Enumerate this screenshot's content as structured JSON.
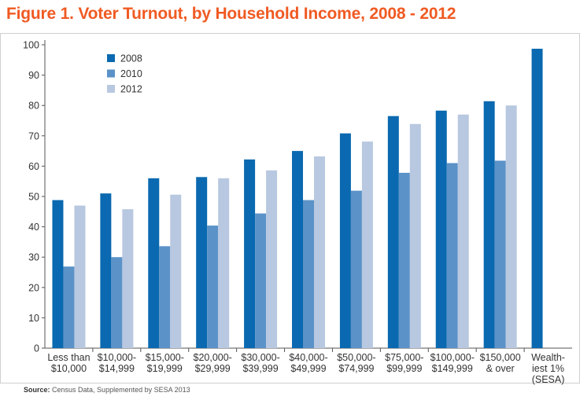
{
  "chart_data": {
    "type": "bar",
    "title": "Figure 1. Voter Turnout, by Household Income, 2008 - 2012",
    "xlabel": "",
    "ylabel": "",
    "ylim": [
      0,
      100
    ],
    "yticks": [
      0,
      10,
      20,
      30,
      40,
      50,
      60,
      70,
      80,
      90,
      100
    ],
    "grid": false,
    "legend": "top-left",
    "categories": [
      [
        "Less than",
        "$10,000"
      ],
      [
        "$10,000-",
        "$14,999"
      ],
      [
        "$15,000-",
        "$19,999"
      ],
      [
        "$20,000-",
        "$29,999"
      ],
      [
        "$30,000-",
        "$39,999"
      ],
      [
        "$40,000-",
        "$49,999"
      ],
      [
        "$50,000-",
        "$74,999"
      ],
      [
        "$75,000-",
        "$99,999"
      ],
      [
        "$100,000-",
        "$149,999"
      ],
      [
        "$150,000",
        "& over"
      ],
      [
        "Wealth-",
        "iest 1%",
        "(SESA)"
      ]
    ],
    "series": [
      {
        "name": "2008",
        "color": "#0a69b0",
        "values": [
          48.8,
          51,
          56,
          56.4,
          62.2,
          65,
          70.8,
          76.5,
          78.3,
          81.4,
          98.7
        ]
      },
      {
        "name": "2010",
        "color": "#5b92c8",
        "values": [
          26.9,
          30,
          33.6,
          40.4,
          44.4,
          48.8,
          51.9,
          57.8,
          61,
          61.8,
          null
        ]
      },
      {
        "name": "2012",
        "color": "#b8c8e0",
        "values": [
          47,
          45.8,
          50.6,
          56,
          58.6,
          63.2,
          68.1,
          73.9,
          77,
          80,
          null
        ]
      }
    ]
  },
  "source": {
    "label": "Source:",
    "text": "Census Data, Supplemented by SESA 2013"
  }
}
